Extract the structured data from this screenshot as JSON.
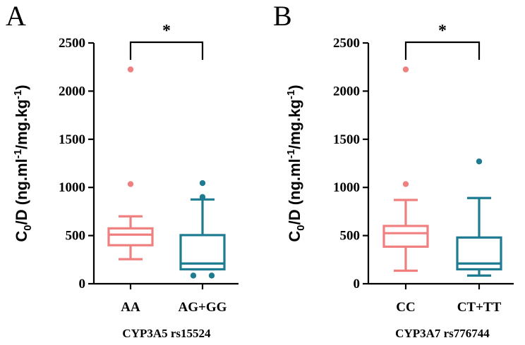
{
  "chart_data": [
    {
      "type": "box",
      "panel_label": "A",
      "xlabel": "CYP3A5 rs15524",
      "ylabel": {
        "prefix": "C",
        "sub0": "0",
        "mid": "/D (ng.ml",
        "sup1": "-1",
        "mid2": "/mg.kg",
        "sup2": "-1",
        "end": ")"
      },
      "ylim": [
        0,
        2500
      ],
      "yticks": [
        0,
        500,
        1000,
        1500,
        2000,
        2500
      ],
      "significance": "*",
      "groups": [
        {
          "name": "AA",
          "color": "#f08080",
          "whisker_low": 255,
          "q1": 400,
          "median": 510,
          "q3": 575,
          "whisker_high": 700,
          "outliers": [
            1035,
            2225
          ]
        },
        {
          "name": "AG+GG",
          "color": "#1e7b90",
          "whisker_low": 150,
          "q1": 150,
          "median": 210,
          "q3": 505,
          "whisker_high": 875,
          "outliers": [
            85,
            85,
            900,
            1045
          ]
        }
      ]
    },
    {
      "type": "box",
      "panel_label": "B",
      "xlabel": "CYP3A7 rs776744",
      "ylabel": {
        "prefix": "C",
        "sub0": "0",
        "mid": "/D (ng.ml",
        "sup1": "-1",
        "mid2": "/mg.kg",
        "sup2": "-1",
        "end": ")"
      },
      "ylim": [
        0,
        2500
      ],
      "yticks": [
        0,
        500,
        1000,
        1500,
        2000,
        2500
      ],
      "significance": "*",
      "groups": [
        {
          "name": "CC",
          "color": "#f08080",
          "whisker_low": 135,
          "q1": 385,
          "median": 525,
          "q3": 600,
          "whisker_high": 870,
          "outliers": [
            1035,
            2225
          ]
        },
        {
          "name": "CT+TT",
          "color": "#1e7b90",
          "whisker_low": 85,
          "q1": 150,
          "median": 210,
          "q3": 480,
          "whisker_high": 890,
          "outliers": [
            1270
          ]
        }
      ]
    }
  ]
}
